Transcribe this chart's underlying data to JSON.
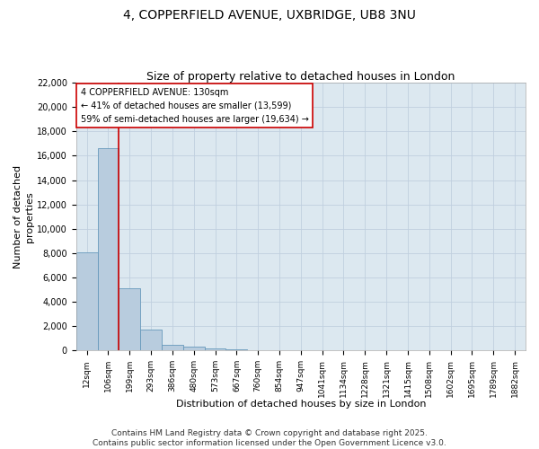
{
  "title_line1": "4, COPPERFIELD AVENUE, UXBRIDGE, UB8 3NU",
  "title_line2": "Size of property relative to detached houses in London",
  "xlabel": "Distribution of detached houses by size in London",
  "ylabel": "Number of detached\nproperties",
  "categories": [
    "12sqm",
    "106sqm",
    "199sqm",
    "293sqm",
    "386sqm",
    "480sqm",
    "573sqm",
    "667sqm",
    "760sqm",
    "854sqm",
    "947sqm",
    "1041sqm",
    "1134sqm",
    "1228sqm",
    "1321sqm",
    "1415sqm",
    "1508sqm",
    "1602sqm",
    "1695sqm",
    "1789sqm",
    "1882sqm"
  ],
  "values": [
    8100,
    16600,
    5100,
    1700,
    500,
    350,
    150,
    80,
    40,
    0,
    0,
    0,
    0,
    0,
    0,
    0,
    0,
    0,
    0,
    0,
    0
  ],
  "bar_color": "#b8ccde",
  "bar_edge_color": "#6699bb",
  "ylim": [
    0,
    22000
  ],
  "yticks": [
    0,
    2000,
    4000,
    6000,
    8000,
    10000,
    12000,
    14000,
    16000,
    18000,
    20000,
    22000
  ],
  "vline_color": "#cc0000",
  "vline_x_index": 1.5,
  "annotation_text": "4 COPPERFIELD AVENUE: 130sqm\n← 41% of detached houses are smaller (13,599)\n59% of semi-detached houses are larger (19,634) →",
  "footer_line1": "Contains HM Land Registry data © Crown copyright and database right 2025.",
  "footer_line2": "Contains public sector information licensed under the Open Government Licence v3.0.",
  "bg_color": "#ffffff",
  "plot_bg_color": "#dce8f0",
  "grid_color": "#c0cfdf",
  "title_fontsize": 10,
  "subtitle_fontsize": 9,
  "tick_fontsize": 7,
  "axis_label_fontsize": 8,
  "annotation_fontsize": 7,
  "footer_fontsize": 6.5
}
